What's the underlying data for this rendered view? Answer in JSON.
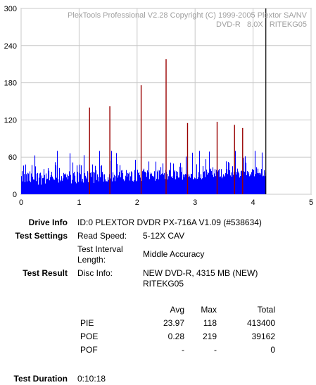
{
  "chart_data": {
    "type": "bar",
    "title": "",
    "watermark": [
      "PlexTools Professional V2.28 Copyright (C) 1999-2005 Plextor SA/NV",
      "DVD-R   8.0X   RITEKG05"
    ],
    "xlabel": "",
    "ylabel": "",
    "xlim": [
      0,
      5
    ],
    "ylim": [
      0,
      300
    ],
    "x_ticks": [
      "0",
      "1",
      "2",
      "3",
      "4",
      "5"
    ],
    "y_ticks": [
      "0",
      "60",
      "120",
      "180",
      "240",
      "300"
    ],
    "grid": true,
    "end_marker_x": 4.22,
    "series": [
      {
        "color": "#0000ff",
        "x_end": 4.22,
        "typical_max": 45
      },
      {
        "color": "#990000",
        "spikes": [
          {
            "x": 1.18,
            "value": 140
          },
          {
            "x": 1.53,
            "value": 142
          },
          {
            "x": 2.07,
            "value": 176
          },
          {
            "x": 2.5,
            "value": 218
          },
          {
            "x": 2.87,
            "value": 115
          },
          {
            "x": 3.38,
            "value": 117
          },
          {
            "x": 3.68,
            "value": 112
          },
          {
            "x": 3.82,
            "value": 107
          }
        ]
      }
    ]
  },
  "info": {
    "drive_info_label": "Drive Info",
    "drive_info_value": "ID:0 PLEXTOR DVDR PX-716A V1.09 (#538634)",
    "test_settings_label": "Test Settings",
    "read_speed_label": "Read Speed:",
    "read_speed_value": "5-12X CAV",
    "interval_label_1": "Test Interval",
    "interval_label_2": "Length:",
    "interval_value": "Middle Accuracy",
    "test_result_label": "Test Result",
    "disc_info_label": "Disc Info:",
    "disc_info_value_1": "NEW DVD-R, 4315 MB (NEW)",
    "disc_info_value_2": "RITEKG05",
    "test_duration_label": "Test Duration",
    "test_duration_value": "0:10:18"
  },
  "stats": {
    "headers": {
      "avg": "Avg",
      "max": "Max",
      "total": "Total"
    },
    "rows": [
      {
        "name": "PIE",
        "avg": "23.97",
        "max": "118",
        "total": "413400"
      },
      {
        "name": "POE",
        "avg": "0.28",
        "max": "219",
        "total": "39162"
      },
      {
        "name": "POF",
        "avg": "-",
        "max": "-",
        "total": "0"
      }
    ]
  }
}
